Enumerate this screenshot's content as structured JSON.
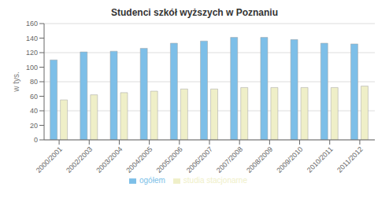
{
  "chart_data": {
    "type": "bar",
    "title": "Studenci szkół wyższych w Poznaniu",
    "ylabel": "w tys.",
    "categories": [
      "2000/2001",
      "2002/2003",
      "2003/2004",
      "2004/2005",
      "2005/2006",
      "2006/2007",
      "2007/2008",
      "2008/2009",
      "2009/2010",
      "2010/2011",
      "2011/2012"
    ],
    "series": [
      {
        "name": "ogółem",
        "color": "#7DBFE8",
        "values": [
          110,
          121,
          122,
          126,
          133,
          136,
          141,
          141,
          138,
          133,
          132
        ]
      },
      {
        "name": "studia stacjonarne",
        "color": "#EFEFC8",
        "values": [
          55,
          62,
          65,
          67,
          70,
          70,
          72,
          72,
          72,
          72,
          74
        ]
      }
    ],
    "ylim": [
      0,
      160
    ],
    "yticks": [
      0,
      20,
      40,
      60,
      80,
      100,
      120,
      140,
      160
    ],
    "grid": true,
    "legend": "bottom"
  }
}
